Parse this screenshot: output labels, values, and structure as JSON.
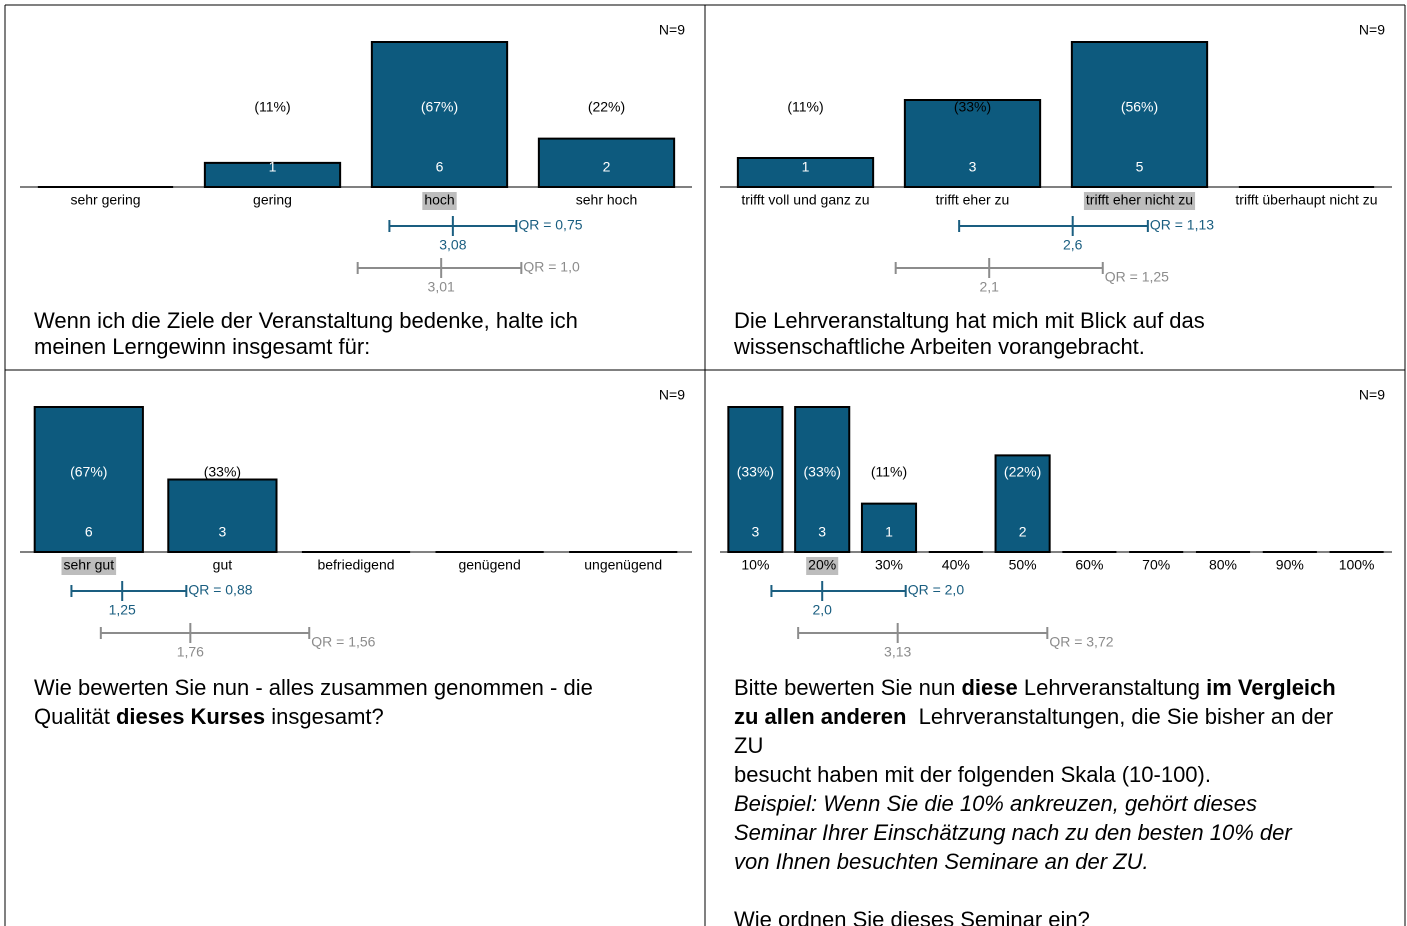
{
  "chart_data": [
    {
      "type": "bar",
      "n_label": "N=9",
      "color": "#0d5a7e",
      "highlight": 2,
      "categories": [
        "sehr gering",
        "gering",
        "hoch",
        "sehr hoch"
      ],
      "values": [
        0,
        1,
        6,
        2
      ],
      "percent_labels": [
        null,
        "(11%)",
        "(67%)",
        "(22%)"
      ],
      "stats": [
        {
          "color": "#1a5e80",
          "mean": {
            "value": 3.08,
            "label": "3,08"
          },
          "range": [
            2.7,
            3.46
          ],
          "qr_label": "QR = 0,75"
        },
        {
          "color": "#8c8c8c",
          "mean": {
            "value": 3.01,
            "label": "3,01"
          },
          "range": [
            2.51,
            3.49
          ],
          "qr_label": "QR = 1,0"
        }
      ],
      "question": [
        [
          [
            {
              "text": "Wenn ich die Ziele der Veranstaltung bedenke, halte ich"
            }
          ],
          [
            {
              "text": "meinen Lerngewinn insgesamt für:"
            }
          ]
        ]
      ]
    },
    {
      "type": "bar",
      "n_label": "N=9",
      "color": "#0d5a7e",
      "highlight": 2,
      "categories": [
        "trifft voll und ganz zu",
        "trifft eher zu",
        "trifft eher nicht zu",
        "trifft überhaupt nicht zu"
      ],
      "values": [
        1,
        3,
        5,
        0
      ],
      "percent_labels": [
        "(11%)",
        "(33%)",
        "(56%)",
        null
      ],
      "stats": [
        {
          "color": "#1a5e80",
          "mean": {
            "value": 2.6,
            "label": "2,6"
          },
          "range": [
            1.92,
            3.05
          ],
          "qr_label": "QR = 1,13"
        },
        {
          "color": "#8c8c8c",
          "mean": {
            "value": 2.1,
            "label": "2,1"
          },
          "range": [
            1.54,
            2.78
          ],
          "qr_label": "QR = 1,25"
        }
      ],
      "question": [
        [
          [
            {
              "text": "Die Lehrveranstaltung hat mich mit Blick auf das"
            }
          ],
          [
            {
              "text": "wissenschaftliche Arbeiten vorangebracht."
            }
          ]
        ]
      ]
    },
    {
      "type": "bar",
      "n_label": "N=9",
      "color": "#0d5a7e",
      "highlight": 0,
      "categories": [
        "sehr gut",
        "gut",
        "befriedigend",
        "genügend",
        "ungenügend"
      ],
      "values": [
        6,
        3,
        0,
        0,
        0
      ],
      "percent_labels": [
        "(67%)",
        "(33%)",
        null,
        null,
        null
      ],
      "stats": [
        {
          "color": "#1a5e80",
          "mean": {
            "value": 1.25,
            "label": "1,25"
          },
          "range": [
            0.87,
            1.73
          ],
          "qr_label": "QR = 0,88"
        },
        {
          "color": "#8c8c8c",
          "mean": {
            "value": 1.76,
            "label": "1,76"
          },
          "range": [
            1.09,
            2.65
          ],
          "qr_label": "QR = 1,56"
        }
      ],
      "question": [
        [
          [
            {
              "text": "Wie bewerten Sie nun - alles zusammen genommen - die"
            }
          ],
          [
            {
              "text": "Qualität "
            },
            {
              "text": "dieses Kurses",
              "style": "bold"
            },
            {
              "text": " insgesamt?"
            }
          ]
        ]
      ]
    },
    {
      "type": "bar",
      "n_label": "N=9",
      "color": "#0d5a7e",
      "highlight": 1,
      "categories": [
        "10%",
        "20%",
        "30%",
        "40%",
        "50%",
        "60%",
        "70%",
        "80%",
        "90%",
        "100%"
      ],
      "values": [
        3,
        3,
        1,
        0,
        2,
        0,
        0,
        0,
        0,
        0
      ],
      "percent_labels": [
        "(33%)",
        "(33%)",
        "(11%)",
        null,
        "(22%)",
        null,
        null,
        null,
        null,
        null
      ],
      "stats": [
        {
          "color": "#1a5e80",
          "mean": {
            "value": 2.0,
            "label": "2,0"
          },
          "range": [
            1.24,
            3.25
          ],
          "qr_label": "QR = 2,0"
        },
        {
          "color": "#8c8c8c",
          "mean": {
            "value": 3.13,
            "label": "3,13"
          },
          "range": [
            1.64,
            5.37
          ],
          "qr_label": "QR = 3,72"
        }
      ],
      "question": [
        [
          [
            {
              "text": "Bitte bewerten Sie nun "
            },
            {
              "text": "diese",
              "style": "bold"
            },
            {
              "text": " Lehrveranstaltung "
            },
            {
              "text": "im Vergleich",
              "style": "bold"
            }
          ],
          [
            {
              "text": "zu allen anderen ",
              "style": "bold"
            },
            {
              "text": " Lehrveranstaltungen, die Sie bisher an der"
            }
          ],
          [
            {
              "text": "ZU"
            }
          ],
          [
            {
              "text": "besucht haben mit der folgenden Skala (10-100)."
            }
          ],
          [
            {
              "text": "Beispiel: Wenn Sie die 10% ankreuzen, gehört dieses",
              "style": "italic"
            }
          ],
          [
            {
              "text": "Seminar Ihrer Einschätzung nach zu den besten 10% der",
              "style": "italic"
            }
          ],
          [
            {
              "text": "von Ihnen besuchten Seminare an der ZU.",
              "style": "italic"
            }
          ]
        ],
        [
          [
            {
              "text": "Wie ordnen Sie dieses Seminar ein?"
            }
          ]
        ]
      ]
    }
  ]
}
